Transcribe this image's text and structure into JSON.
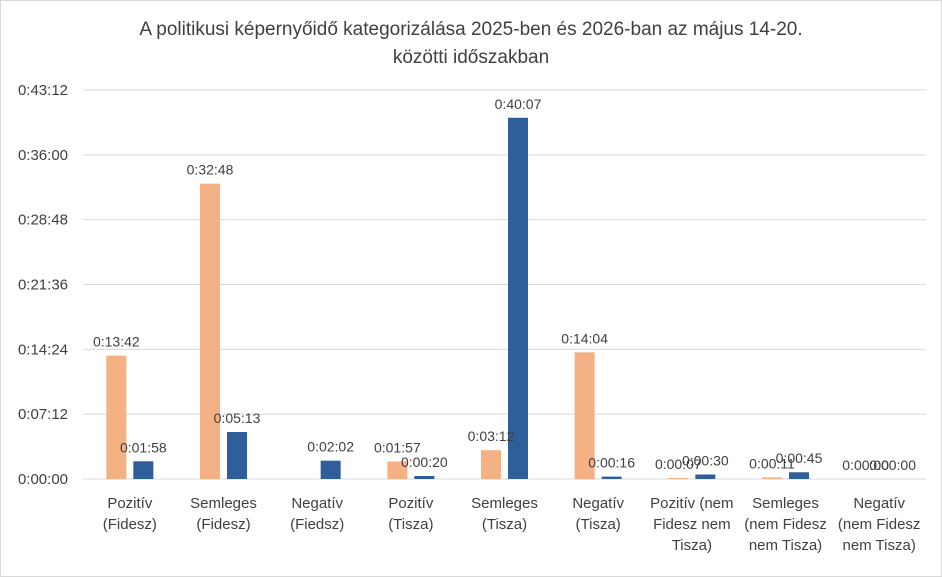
{
  "chart_data": {
    "type": "bar",
    "title_lines": [
      "A politikusi képernyőidő kategorizálása 2025-ben és 2026-ban az május 14-20.",
      "közötti időszakban"
    ],
    "xlabel": "",
    "ylabel": "",
    "ylim": [
      0,
      2592
    ],
    "yunit": "seconds",
    "y_ticks": [
      0,
      432,
      864,
      1296,
      1728,
      2160,
      2592
    ],
    "y_tick_labels": [
      "0:00:00",
      "0:07:12",
      "0:14:24",
      "0:21:36",
      "0:28:48",
      "0:36:00",
      "0:43:12"
    ],
    "grid": true,
    "legend": "none",
    "categories": [
      [
        "Pozitív",
        "(Fidesz)"
      ],
      [
        "Semleges",
        "(Fidesz)"
      ],
      [
        "Negatív",
        "(Fiedsz)"
      ],
      [
        "Pozitív",
        "(Tisza)"
      ],
      [
        "Semleges",
        "(Tisza)"
      ],
      [
        "Negatív",
        "(Tisza)"
      ],
      [
        "Pozitív (nem",
        "Fidesz nem",
        "Tisza)"
      ],
      [
        "Semleges",
        "(nem Fidesz",
        "nem Tisza)"
      ],
      [
        "Negatív",
        "(nem Fidesz",
        "nem Tisza)"
      ]
    ],
    "series": [
      {
        "color": "#f4b183",
        "values": [
          822,
          1968,
          null,
          117,
          192,
          844,
          7,
          11,
          0
        ],
        "labels": [
          "0:13:42",
          "0:32:48",
          "",
          "0:01:57",
          "0:03:12",
          "0:14:04",
          "0:00:07",
          "0:00:11",
          "0:00:00"
        ]
      },
      {
        "color": "#2e5f9a",
        "values": [
          118,
          313,
          122,
          20,
          2407,
          16,
          30,
          45,
          0
        ],
        "labels": [
          "0:01:58",
          "0:05:13",
          "0:02:02",
          "0:00:20",
          "0:40:07",
          "0:00:16",
          "0:00:30",
          "0:00:45",
          "0:00:00"
        ]
      }
    ]
  }
}
